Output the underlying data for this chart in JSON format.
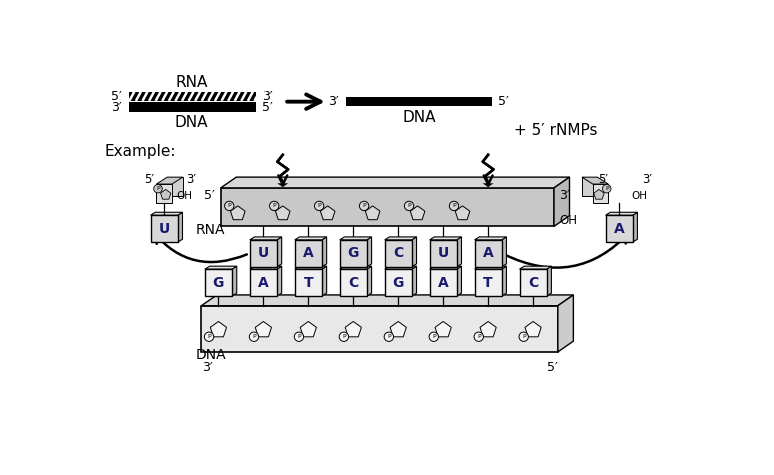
{
  "bg_color": "#ffffff",
  "rna_bases_top": [
    "U",
    "A",
    "G",
    "C",
    "U",
    "A"
  ],
  "dna_bases_bottom": [
    "G",
    "A",
    "T",
    "C",
    "G",
    "A",
    "T",
    "C"
  ],
  "rna_label": "RNA",
  "dna_label": "DNA",
  "example_label": "Example:",
  "rnmps_label": "+ 5′ rNMPs",
  "strand_5p": "5′",
  "strand_3p": "3′",
  "oh_label": "OH",
  "top_rna_label": "RNA",
  "top_dna_label": "DNA",
  "rna_bar_color": "#c8c8c8",
  "rna_bar_top_color": "#d8d8d8",
  "rna_bar_right_color": "#b8b8b8",
  "dna_bar_color": "#e8e8e8",
  "dna_bar_top_color": "#d8d8d8",
  "dna_bar_right_color": "#cccccc",
  "rna_box_color": "#d8d8d8",
  "dna_box_color": "#f0f0f0",
  "nuc_color": "#d8d8d8"
}
